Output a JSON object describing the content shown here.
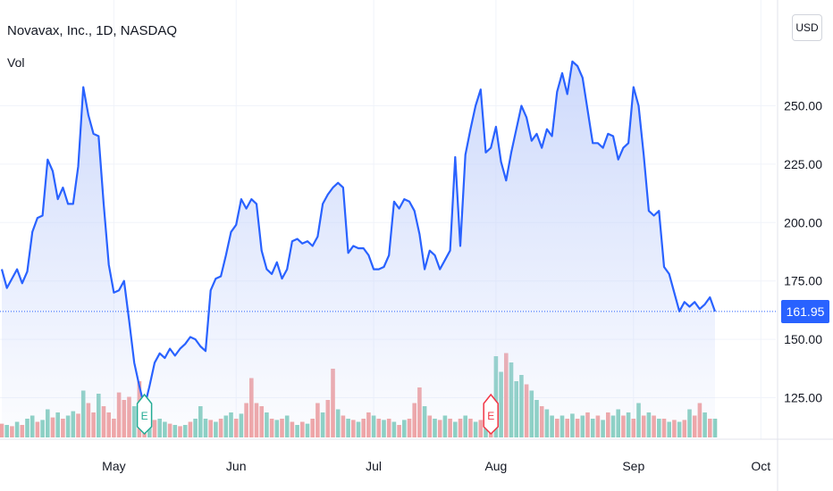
{
  "header": {
    "title": "Novavax, Inc., 1D, NASDAQ",
    "volume_label": "Vol",
    "currency_button": "USD",
    "current_price": "161.95"
  },
  "colors": {
    "line": "#2962ff",
    "area_top": "#c9d6fb",
    "vol_up": "#89cfc1",
    "vol_down": "#f0a3a3",
    "grid": "#f0f3fa",
    "earnings_up": "#22ab94",
    "earnings_down": "#f23645"
  },
  "chart_data": {
    "type": "line",
    "title": "Novavax, Inc., 1D, NASDAQ",
    "ylim": [
      108,
      280
    ],
    "y_ticks": [
      "125.00",
      "150.00",
      "175.00",
      "200.00",
      "225.00",
      "250.00"
    ],
    "x_ticks": [
      "May",
      "Jun",
      "Jul",
      "Aug",
      "Sep",
      "Oct"
    ],
    "x_tick_index": [
      22,
      46,
      73,
      97,
      124,
      149
    ],
    "current_price": 161.95,
    "series": [
      {
        "values": [
          180,
          172,
          176,
          180,
          174,
          179,
          196,
          202,
          203,
          227,
          222,
          210,
          215,
          208,
          208,
          224,
          258,
          246,
          238,
          237,
          208,
          182,
          170,
          171,
          175,
          158,
          140,
          130,
          121,
          130,
          140,
          144,
          142,
          146,
          143,
          146,
          148,
          151,
          150,
          147,
          145,
          171,
          176,
          177,
          186,
          196,
          199,
          210,
          206,
          210,
          208,
          188,
          180,
          178,
          183,
          176,
          180,
          192,
          193,
          191,
          192,
          190,
          194,
          208,
          212,
          215,
          217,
          215,
          187,
          190,
          189,
          189,
          186,
          180,
          180,
          181,
          186,
          209,
          206,
          210,
          209,
          205,
          195,
          180,
          188,
          186,
          180,
          184,
          188,
          228,
          190,
          229,
          240,
          250,
          257,
          230,
          232,
          241,
          226,
          218,
          230,
          240,
          250,
          245,
          235,
          238,
          232,
          240,
          237,
          256,
          264,
          255,
          269,
          267,
          262,
          248,
          234,
          234,
          232,
          238,
          237,
          227,
          232,
          234,
          258,
          250,
          229,
          205,
          203,
          205,
          181,
          178,
          170,
          162,
          166,
          164,
          166,
          163,
          165,
          168,
          161.95
        ]
      }
    ],
    "volume": [
      {
        "v": 0.22,
        "up": false
      },
      {
        "v": 0.2,
        "up": true
      },
      {
        "v": 0.18,
        "up": false
      },
      {
        "v": 0.25,
        "up": true
      },
      {
        "v": 0.2,
        "up": false
      },
      {
        "v": 0.3,
        "up": true
      },
      {
        "v": 0.35,
        "up": true
      },
      {
        "v": 0.25,
        "up": false
      },
      {
        "v": 0.28,
        "up": true
      },
      {
        "v": 0.45,
        "up": true
      },
      {
        "v": 0.32,
        "up": false
      },
      {
        "v": 0.4,
        "up": true
      },
      {
        "v": 0.3,
        "up": false
      },
      {
        "v": 0.35,
        "up": true
      },
      {
        "v": 0.42,
        "up": true
      },
      {
        "v": 0.38,
        "up": false
      },
      {
        "v": 0.75,
        "up": true
      },
      {
        "v": 0.55,
        "up": false
      },
      {
        "v": 0.4,
        "up": false
      },
      {
        "v": 0.7,
        "up": true
      },
      {
        "v": 0.5,
        "up": false
      },
      {
        "v": 0.4,
        "up": false
      },
      {
        "v": 0.3,
        "up": false
      },
      {
        "v": 0.72,
        "up": false
      },
      {
        "v": 0.6,
        "up": false
      },
      {
        "v": 0.65,
        "up": false
      },
      {
        "v": 0.5,
        "up": true
      },
      {
        "v": 0.9,
        "up": false
      },
      {
        "v": 0.3,
        "up": false
      },
      {
        "v": 0.35,
        "up": true
      },
      {
        "v": 0.28,
        "up": false
      },
      {
        "v": 0.3,
        "up": true
      },
      {
        "v": 0.25,
        "up": true
      },
      {
        "v": 0.22,
        "up": false
      },
      {
        "v": 0.2,
        "up": true
      },
      {
        "v": 0.18,
        "up": false
      },
      {
        "v": 0.2,
        "up": true
      },
      {
        "v": 0.25,
        "up": false
      },
      {
        "v": 0.3,
        "up": true
      },
      {
        "v": 0.5,
        "up": true
      },
      {
        "v": 0.3,
        "up": true
      },
      {
        "v": 0.28,
        "up": false
      },
      {
        "v": 0.25,
        "up": true
      },
      {
        "v": 0.3,
        "up": false
      },
      {
        "v": 0.35,
        "up": true
      },
      {
        "v": 0.4,
        "up": true
      },
      {
        "v": 0.3,
        "up": false
      },
      {
        "v": 0.38,
        "up": true
      },
      {
        "v": 0.55,
        "up": false
      },
      {
        "v": 0.95,
        "up": false
      },
      {
        "v": 0.55,
        "up": false
      },
      {
        "v": 0.5,
        "up": false
      },
      {
        "v": 0.4,
        "up": true
      },
      {
        "v": 0.3,
        "up": false
      },
      {
        "v": 0.28,
        "up": true
      },
      {
        "v": 0.3,
        "up": false
      },
      {
        "v": 0.35,
        "up": true
      },
      {
        "v": 0.25,
        "up": false
      },
      {
        "v": 0.2,
        "up": true
      },
      {
        "v": 0.25,
        "up": false
      },
      {
        "v": 0.22,
        "up": true
      },
      {
        "v": 0.3,
        "up": false
      },
      {
        "v": 0.55,
        "up": false
      },
      {
        "v": 0.4,
        "up": true
      },
      {
        "v": 0.6,
        "up": false
      },
      {
        "v": 1.1,
        "up": false
      },
      {
        "v": 0.45,
        "up": true
      },
      {
        "v": 0.35,
        "up": false
      },
      {
        "v": 0.3,
        "up": true
      },
      {
        "v": 0.28,
        "up": false
      },
      {
        "v": 0.25,
        "up": true
      },
      {
        "v": 0.3,
        "up": false
      },
      {
        "v": 0.4,
        "up": false
      },
      {
        "v": 0.35,
        "up": true
      },
      {
        "v": 0.3,
        "up": false
      },
      {
        "v": 0.28,
        "up": true
      },
      {
        "v": 0.3,
        "up": false
      },
      {
        "v": 0.25,
        "up": true
      },
      {
        "v": 0.2,
        "up": false
      },
      {
        "v": 0.28,
        "up": true
      },
      {
        "v": 0.3,
        "up": false
      },
      {
        "v": 0.55,
        "up": false
      },
      {
        "v": 0.8,
        "up": false
      },
      {
        "v": 0.5,
        "up": true
      },
      {
        "v": 0.35,
        "up": false
      },
      {
        "v": 0.3,
        "up": true
      },
      {
        "v": 0.28,
        "up": false
      },
      {
        "v": 0.35,
        "up": true
      },
      {
        "v": 0.3,
        "up": false
      },
      {
        "v": 0.25,
        "up": true
      },
      {
        "v": 0.3,
        "up": false
      },
      {
        "v": 0.35,
        "up": true
      },
      {
        "v": 0.3,
        "up": false
      },
      {
        "v": 0.25,
        "up": true
      },
      {
        "v": 0.28,
        "up": false
      },
      {
        "v": 0.3,
        "up": true
      },
      {
        "v": 0.35,
        "up": false
      },
      {
        "v": 1.3,
        "up": true
      },
      {
        "v": 1.05,
        "up": true
      },
      {
        "v": 1.35,
        "up": false
      },
      {
        "v": 1.2,
        "up": true
      },
      {
        "v": 0.9,
        "up": true
      },
      {
        "v": 1.0,
        "up": true
      },
      {
        "v": 0.85,
        "up": false
      },
      {
        "v": 0.75,
        "up": true
      },
      {
        "v": 0.6,
        "up": true
      },
      {
        "v": 0.5,
        "up": false
      },
      {
        "v": 0.45,
        "up": true
      },
      {
        "v": 0.35,
        "up": true
      },
      {
        "v": 0.3,
        "up": false
      },
      {
        "v": 0.35,
        "up": true
      },
      {
        "v": 0.3,
        "up": false
      },
      {
        "v": 0.38,
        "up": true
      },
      {
        "v": 0.3,
        "up": false
      },
      {
        "v": 0.35,
        "up": true
      },
      {
        "v": 0.4,
        "up": false
      },
      {
        "v": 0.3,
        "up": true
      },
      {
        "v": 0.35,
        "up": false
      },
      {
        "v": 0.28,
        "up": true
      },
      {
        "v": 0.4,
        "up": false
      },
      {
        "v": 0.35,
        "up": true
      },
      {
        "v": 0.45,
        "up": true
      },
      {
        "v": 0.35,
        "up": false
      },
      {
        "v": 0.4,
        "up": true
      },
      {
        "v": 0.3,
        "up": false
      },
      {
        "v": 0.55,
        "up": true
      },
      {
        "v": 0.35,
        "up": false
      },
      {
        "v": 0.4,
        "up": true
      },
      {
        "v": 0.35,
        "up": false
      },
      {
        "v": 0.3,
        "up": true
      },
      {
        "v": 0.3,
        "up": false
      },
      {
        "v": 0.25,
        "up": true
      },
      {
        "v": 0.28,
        "up": false
      },
      {
        "v": 0.25,
        "up": true
      },
      {
        "v": 0.28,
        "up": false
      },
      {
        "v": 0.45,
        "up": true
      },
      {
        "v": 0.35,
        "up": false
      },
      {
        "v": 0.55,
        "up": false
      },
      {
        "v": 0.4,
        "up": true
      },
      {
        "v": 0.3,
        "up": false
      },
      {
        "v": 0.3,
        "up": true
      },
      {
        "v": 0.25,
        "up": false
      },
      {
        "v": 0.6,
        "up": false
      },
      {
        "v": 1.5,
        "up": false
      },
      {
        "v": 0.35,
        "up": true
      },
      {
        "v": 0.3,
        "up": false
      },
      {
        "v": 0.3,
        "up": true
      },
      {
        "v": 0.28,
        "up": false
      },
      {
        "v": 0.25,
        "up": true
      },
      {
        "v": 0.22,
        "up": false
      },
      {
        "v": 0.25,
        "up": true
      },
      {
        "v": 0.3,
        "up": false
      },
      {
        "v": 0.22,
        "up": true
      },
      {
        "v": 0.2,
        "up": false
      },
      {
        "v": 0.28,
        "up": true
      },
      {
        "v": 0.25,
        "up": false
      }
    ],
    "earnings": [
      {
        "index": 28,
        "label": "E",
        "type": "up"
      },
      {
        "index": 96,
        "label": "E",
        "type": "down"
      }
    ]
  }
}
